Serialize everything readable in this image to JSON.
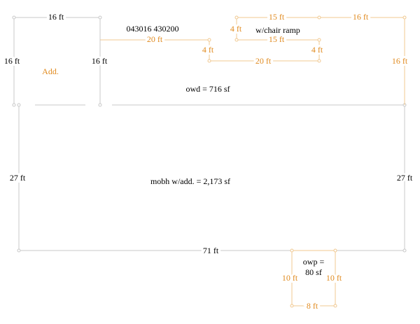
{
  "header": {
    "id": "043016 430200"
  },
  "areas": [
    {
      "label": "Add."
    },
    {
      "label": "owd = 716 sf"
    },
    {
      "label": "mobh w/add. = 2,173 sf"
    },
    {
      "label": "w/chair ramp"
    },
    {
      "label": "owp =",
      "label2": "80 sf"
    }
  ],
  "dimensions": [
    "16 ft",
    "16 ft",
    "16 ft",
    "27 ft",
    "27 ft",
    "71 ft",
    "16 ft",
    "20 ft",
    "4 ft",
    "20 ft",
    "4 ft",
    "15 ft",
    "4 ft",
    "15 ft",
    "16 ft",
    "10 ft",
    "10 ft",
    "8 ft"
  ]
}
